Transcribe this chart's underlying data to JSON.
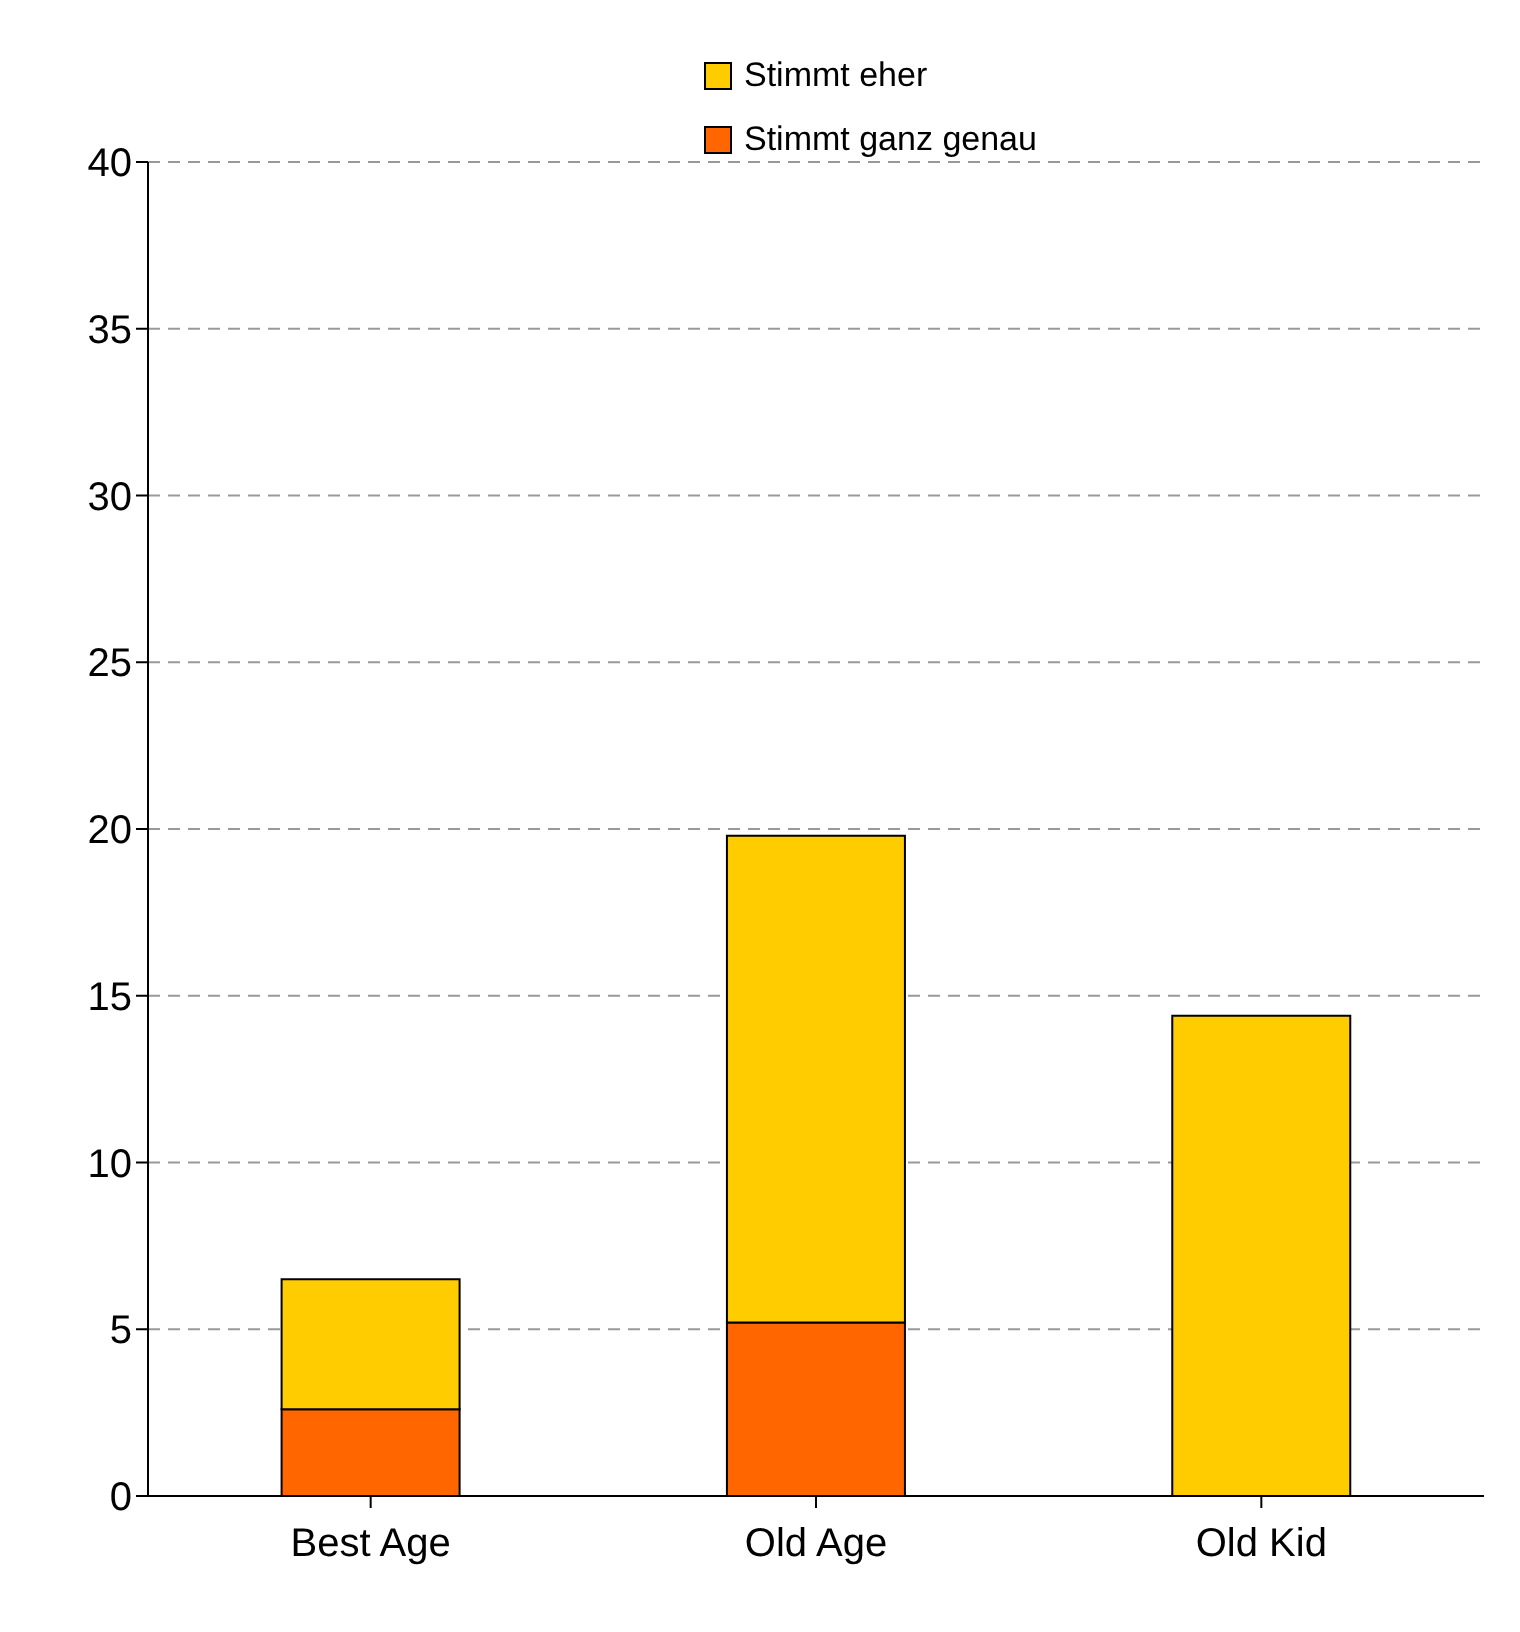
{
  "chart_data": {
    "type": "bar",
    "stacked": true,
    "categories": [
      "Best Age",
      "Old Age",
      "Old Kid"
    ],
    "series": [
      {
        "name": "Stimmt ganz genau",
        "color": "#ff6600",
        "values": [
          2.6,
          5.2,
          0
        ]
      },
      {
        "name": "Stimmt eher",
        "color": "#ffcc00",
        "values": [
          3.9,
          14.6,
          14.4
        ]
      }
    ],
    "ylim": [
      0,
      40
    ],
    "yticks": [
      0,
      5,
      10,
      15,
      20,
      25,
      30,
      35,
      40
    ],
    "grid": "y",
    "legend": "top right"
  }
}
